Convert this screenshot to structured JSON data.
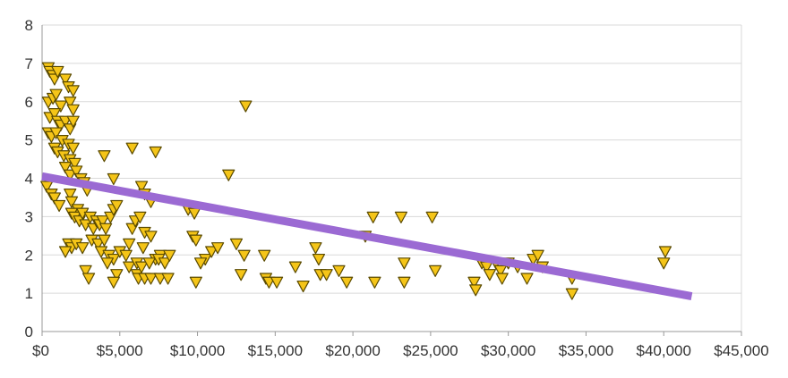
{
  "chart_data": {
    "type": "scatter",
    "title": "",
    "xlabel": "",
    "ylabel": "",
    "xlim": [
      0,
      45000
    ],
    "ylim": [
      0,
      8
    ],
    "grid": true,
    "legend": "none",
    "x_ticks": [
      {
        "value": 0,
        "label": "$0"
      },
      {
        "value": 5000,
        "label": "$5,000"
      },
      {
        "value": 10000,
        "label": "$10,000"
      },
      {
        "value": 15000,
        "label": "$15,000"
      },
      {
        "value": 20000,
        "label": "$20,000"
      },
      {
        "value": 25000,
        "label": "$25,000"
      },
      {
        "value": 30000,
        "label": "$30,000"
      },
      {
        "value": 35000,
        "label": "$35,000"
      },
      {
        "value": 40000,
        "label": "$40,000"
      },
      {
        "value": 45000,
        "label": "$45,000"
      }
    ],
    "y_ticks": [
      {
        "value": 0,
        "label": "0"
      },
      {
        "value": 1,
        "label": "1"
      },
      {
        "value": 2,
        "label": "2"
      },
      {
        "value": 3,
        "label": "3"
      },
      {
        "value": 4,
        "label": "4"
      },
      {
        "value": 5,
        "label": "5"
      },
      {
        "value": 6,
        "label": "6"
      },
      {
        "value": 7,
        "label": "7"
      },
      {
        "value": 8,
        "label": "8"
      }
    ],
    "series": [
      {
        "marker": "triangle-down",
        "color": "#f5c518",
        "edge_color": "#5a4a00",
        "points": [
          [
            400,
            6.9
          ],
          [
            500,
            6.8
          ],
          [
            700,
            6.7
          ],
          [
            800,
            6.6
          ],
          [
            1000,
            6.8
          ],
          [
            1500,
            6.6
          ],
          [
            1700,
            6.4
          ],
          [
            2000,
            6.3
          ],
          [
            400,
            6.0
          ],
          [
            700,
            6.1
          ],
          [
            900,
            6.2
          ],
          [
            1200,
            5.9
          ],
          [
            1800,
            6.0
          ],
          [
            2000,
            5.8
          ],
          [
            500,
            5.6
          ],
          [
            800,
            5.7
          ],
          [
            1000,
            5.5
          ],
          [
            1200,
            5.4
          ],
          [
            1500,
            5.5
          ],
          [
            1800,
            5.3
          ],
          [
            2000,
            5.5
          ],
          [
            400,
            5.2
          ],
          [
            600,
            5.1
          ],
          [
            900,
            5.2
          ],
          [
            1300,
            5.0
          ],
          [
            1700,
            4.9
          ],
          [
            2000,
            4.8
          ],
          [
            800,
            4.8
          ],
          [
            1000,
            4.7
          ],
          [
            1400,
            4.6
          ],
          [
            1800,
            4.5
          ],
          [
            2100,
            4.4
          ],
          [
            1500,
            4.3
          ],
          [
            1800,
            4.1
          ],
          [
            2200,
            4.2
          ],
          [
            2500,
            4.0
          ],
          [
            2700,
            3.9
          ],
          [
            300,
            3.8
          ],
          [
            600,
            3.6
          ],
          [
            800,
            3.5
          ],
          [
            1100,
            3.3
          ],
          [
            1800,
            3.6
          ],
          [
            1900,
            3.4
          ],
          [
            2300,
            3.2
          ],
          [
            2900,
            3.7
          ],
          [
            1900,
            3.1
          ],
          [
            2100,
            3.0
          ],
          [
            2400,
            2.9
          ],
          [
            2600,
            3.1
          ],
          [
            2800,
            2.8
          ],
          [
            3100,
            3.0
          ],
          [
            3300,
            2.7
          ],
          [
            3500,
            2.9
          ],
          [
            3700,
            2.8
          ],
          [
            3900,
            2.9
          ],
          [
            4100,
            2.7
          ],
          [
            4400,
            3.0
          ],
          [
            4600,
            3.2
          ],
          [
            4800,
            3.3
          ],
          [
            1700,
            2.3
          ],
          [
            1900,
            2.2
          ],
          [
            2200,
            2.3
          ],
          [
            2600,
            2.2
          ],
          [
            3200,
            2.4
          ],
          [
            3600,
            2.3
          ],
          [
            4000,
            2.4
          ],
          [
            1500,
            2.1
          ],
          [
            3800,
            2.1
          ],
          [
            4300,
            2.0
          ],
          [
            4600,
            1.9
          ],
          [
            5000,
            2.1
          ],
          [
            5400,
            2.0
          ],
          [
            5600,
            2.3
          ],
          [
            2800,
            1.6
          ],
          [
            3000,
            1.4
          ],
          [
            4200,
            1.8
          ],
          [
            4800,
            1.5
          ],
          [
            4600,
            1.3
          ],
          [
            5600,
            1.7
          ],
          [
            6100,
            1.5
          ],
          [
            4000,
            4.6
          ],
          [
            4600,
            4.0
          ],
          [
            5800,
            4.8
          ],
          [
            7300,
            4.7
          ],
          [
            6400,
            3.8
          ],
          [
            6600,
            3.6
          ],
          [
            7000,
            3.4
          ],
          [
            5800,
            2.7
          ],
          [
            6000,
            2.9
          ],
          [
            6300,
            3.0
          ],
          [
            6600,
            2.6
          ],
          [
            7000,
            2.5
          ],
          [
            7300,
            1.9
          ],
          [
            7600,
            2.0
          ],
          [
            6100,
            1.8
          ],
          [
            6400,
            1.7
          ],
          [
            6900,
            1.8
          ],
          [
            7500,
            1.9
          ],
          [
            7900,
            1.8
          ],
          [
            8200,
            2.0
          ],
          [
            6500,
            2.2
          ],
          [
            6200,
            1.4
          ],
          [
            6600,
            1.4
          ],
          [
            7000,
            1.4
          ],
          [
            7600,
            1.4
          ],
          [
            8100,
            1.4
          ],
          [
            9400,
            3.2
          ],
          [
            9800,
            3.1
          ],
          [
            9700,
            2.5
          ],
          [
            9900,
            2.4
          ],
          [
            10500,
            1.9
          ],
          [
            10900,
            2.1
          ],
          [
            11300,
            2.2
          ],
          [
            10200,
            1.8
          ],
          [
            9900,
            1.3
          ],
          [
            12500,
            2.3
          ],
          [
            13000,
            2.0
          ],
          [
            12000,
            4.1
          ],
          [
            13100,
            5.9
          ],
          [
            12800,
            1.5
          ],
          [
            14300,
            2.0
          ],
          [
            14400,
            1.4
          ],
          [
            14600,
            1.3
          ],
          [
            15100,
            1.3
          ],
          [
            16300,
            1.7
          ],
          [
            16800,
            1.2
          ],
          [
            17600,
            2.2
          ],
          [
            17800,
            1.9
          ],
          [
            17900,
            1.5
          ],
          [
            18300,
            1.5
          ],
          [
            19100,
            1.6
          ],
          [
            19600,
            1.3
          ],
          [
            20800,
            2.5
          ],
          [
            21300,
            3.0
          ],
          [
            21400,
            1.3
          ],
          [
            23100,
            3.0
          ],
          [
            23300,
            1.8
          ],
          [
            23300,
            1.3
          ],
          [
            25100,
            3.0
          ],
          [
            25300,
            1.6
          ],
          [
            27800,
            1.3
          ],
          [
            27900,
            1.1
          ],
          [
            28300,
            1.8
          ],
          [
            28600,
            1.7
          ],
          [
            28800,
            1.5
          ],
          [
            29200,
            1.8
          ],
          [
            29500,
            1.6
          ],
          [
            29600,
            1.4
          ],
          [
            30000,
            1.8
          ],
          [
            30600,
            1.7
          ],
          [
            31200,
            1.4
          ],
          [
            31600,
            1.9
          ],
          [
            31900,
            2.0
          ],
          [
            32200,
            1.7
          ],
          [
            34100,
            1.0
          ],
          [
            34100,
            1.4
          ],
          [
            40100,
            2.1
          ],
          [
            40000,
            1.8
          ]
        ]
      }
    ],
    "trendline": {
      "type": "linear",
      "color": "#9b6ad3",
      "x": [
        0,
        41800
      ],
      "y": [
        4.05,
        0.92
      ]
    }
  }
}
